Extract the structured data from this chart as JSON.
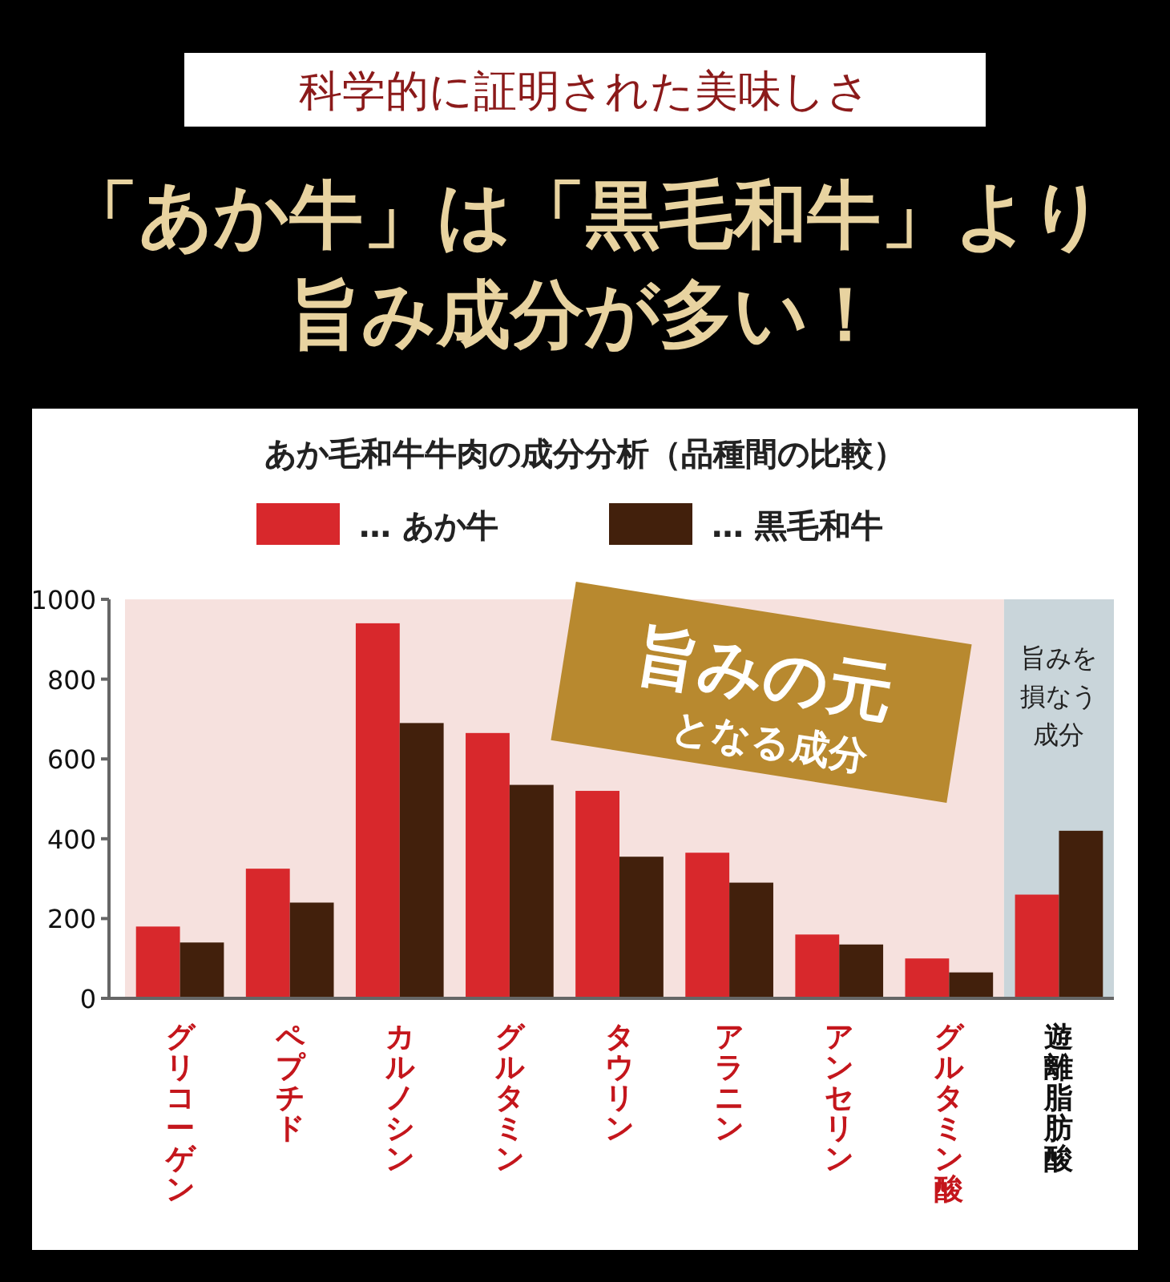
{
  "chart_data": {
    "type": "bar",
    "title": "「あか牛」は「黒毛和牛」より旨み成分が多い！",
    "subtitle": "あか毛和牛牛肉の成分分析（品種間の比較）",
    "annotations": [
      "科学的に証明された美味しさ"
    ],
    "categories": [
      "グリコーゲン",
      "ペプチド",
      "カルノシン",
      "グルタミン",
      "タウリン",
      "アラニン",
      "アンセリン",
      "グルタミン酸",
      "遊離脂肪酸"
    ],
    "series": [
      {
        "name": "… あか牛",
        "color": "#d8282c",
        "values": [
          180,
          325,
          940,
          665,
          520,
          365,
          160,
          100,
          260
        ]
      },
      {
        "name": "… 黒毛和牛",
        "color": "#42200c",
        "values": [
          140,
          240,
          690,
          535,
          355,
          290,
          135,
          65,
          420
        ]
      }
    ],
    "ylim": [
      0,
      1000
    ],
    "yticks": [
      0,
      200,
      400,
      600,
      800,
      1000
    ],
    "legend": "top",
    "grid": false,
    "bands": [
      {
        "axis": "x",
        "from": "グリコーゲン",
        "to": "グルタミン酸",
        "label": "旨みの元となる成分",
        "color": "#f6e1de"
      },
      {
        "axis": "x",
        "from": "遊離脂肪酸",
        "to": "遊離脂肪酸",
        "label": "旨みを損なう成分",
        "color": "#c9d5da"
      }
    ]
  }
}
